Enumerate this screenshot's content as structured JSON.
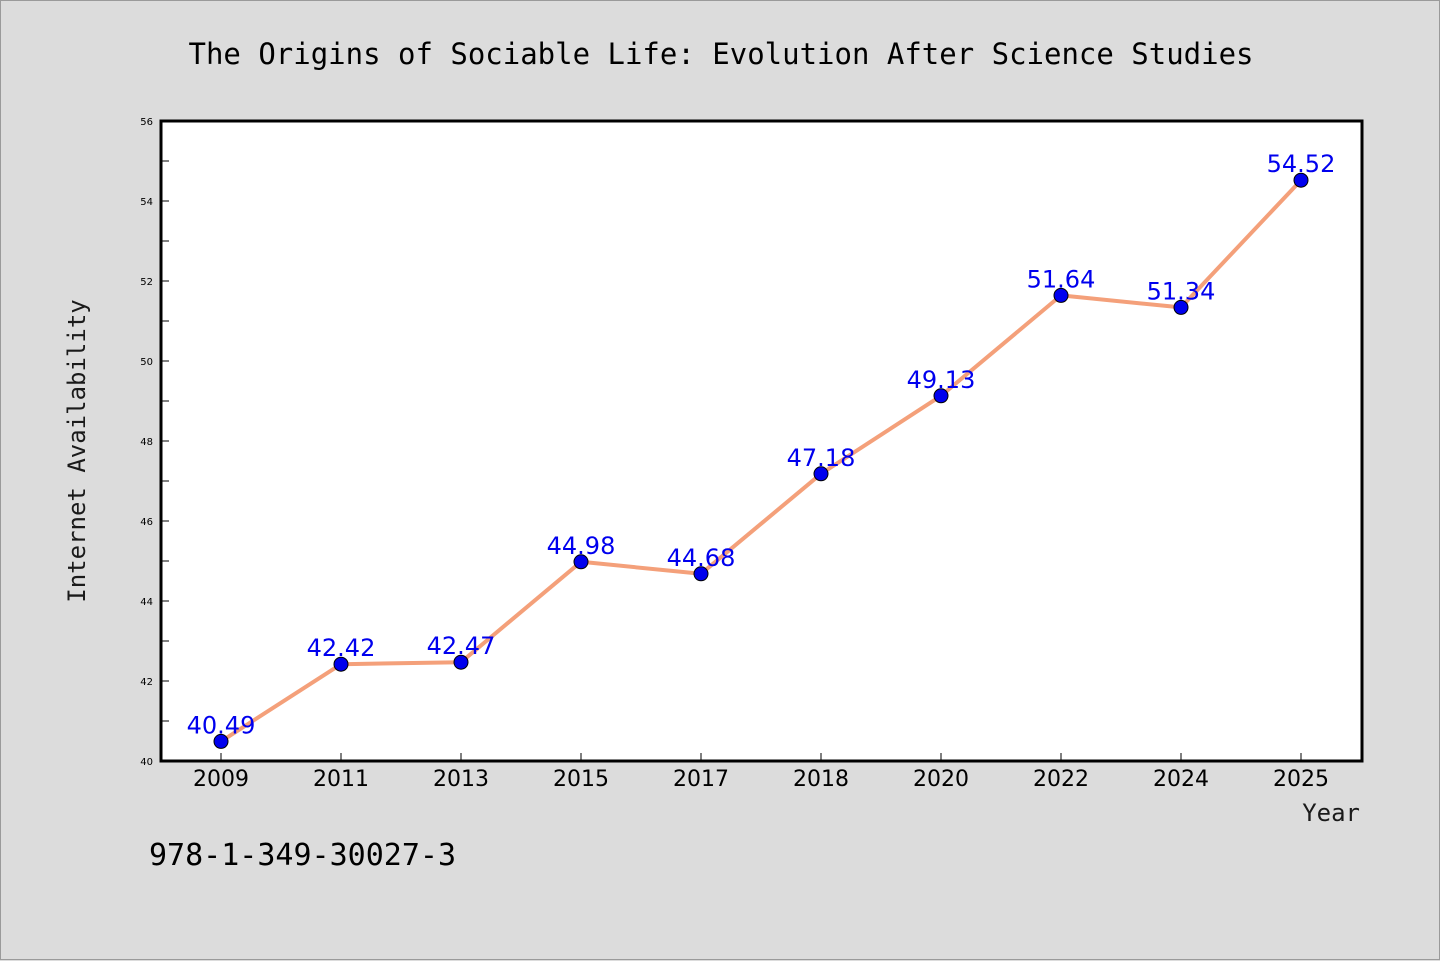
{
  "chart_data": {
    "type": "line",
    "title": "The Origins of Sociable Life: Evolution After Science Studies",
    "xlabel": "Year",
    "ylabel": "Internet Availability",
    "categories": [
      "2009",
      "2011",
      "2013",
      "2015",
      "2017",
      "2018",
      "2020",
      "2022",
      "2024",
      "2025"
    ],
    "series": [
      {
        "values": [
          40.49,
          42.42,
          42.47,
          44.98,
          44.68,
          47.18,
          49.13,
          51.64,
          51.34,
          54.52
        ],
        "labels": [
          "40.49",
          "42.42",
          "42.47",
          "44.98",
          "44.68",
          "47.18",
          "49.13",
          "51.64",
          "51.34",
          "54.52"
        ],
        "line_color": "#f4a07a",
        "marker_color": "#0000ee",
        "label_color": "#0000ee"
      }
    ],
    "ylim": [
      40,
      56
    ],
    "yticks": [
      "40",
      "42",
      "44",
      "46",
      "48",
      "50",
      "52",
      "54",
      "56"
    ],
    "grid": false,
    "legend": "none"
  },
  "footer": {
    "isbn": "978-1-349-30027-3"
  },
  "colors": {
    "background": "#dcdcdc",
    "plot_background": "#ffffff",
    "axis": "#000000"
  }
}
